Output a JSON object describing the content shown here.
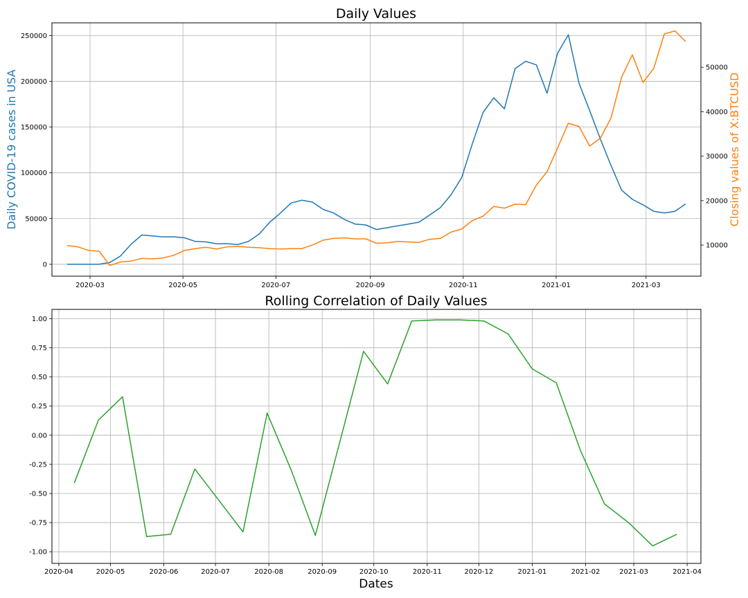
{
  "chart_data": [
    {
      "type": "line",
      "title": "Daily Values",
      "xlabel": "",
      "ylabel": "Daily COVID-19 cases in USA",
      "ylabel_right": "Closing values of X:BTCUSD",
      "grid": true,
      "legend": "none",
      "x_ticks": [
        "2020-03",
        "2020-05",
        "2020-07",
        "2020-09",
        "2020-11",
        "2021-01",
        "2021-03"
      ],
      "y_ticks_left": [
        "0",
        "50000",
        "100000",
        "150000",
        "200000",
        "250000"
      ],
      "y_ticks_right": [
        "10000",
        "20000",
        "30000",
        "40000",
        "50000"
      ],
      "ylim_left": [
        -13000,
        264000
      ],
      "ylim_right": [
        3000,
        60000
      ],
      "series": [
        {
          "axis": "left",
          "color": "#1f77b4",
          "x": [
            "2020-02-15",
            "2020-02-22",
            "2020-02-29",
            "2020-03-07",
            "2020-03-14",
            "2020-03-21",
            "2020-03-28",
            "2020-04-04",
            "2020-04-11",
            "2020-04-18",
            "2020-04-25",
            "2020-05-02",
            "2020-05-09",
            "2020-05-16",
            "2020-05-23",
            "2020-05-30",
            "2020-06-06",
            "2020-06-13",
            "2020-06-20",
            "2020-06-27",
            "2020-07-04",
            "2020-07-11",
            "2020-07-18",
            "2020-07-25",
            "2020-08-01",
            "2020-08-08",
            "2020-08-15",
            "2020-08-22",
            "2020-08-29",
            "2020-09-05",
            "2020-09-12",
            "2020-09-19",
            "2020-09-26",
            "2020-10-03",
            "2020-10-10",
            "2020-10-17",
            "2020-10-24",
            "2020-10-31",
            "2020-11-07",
            "2020-11-14",
            "2020-11-21",
            "2020-11-28",
            "2020-12-05",
            "2020-12-12",
            "2020-12-19",
            "2020-12-26",
            "2021-01-02",
            "2021-01-09",
            "2021-01-16",
            "2021-01-23",
            "2021-01-30",
            "2021-02-06",
            "2021-02-13",
            "2021-02-20",
            "2021-02-27",
            "2021-03-06",
            "2021-03-13",
            "2021-03-20",
            "2021-03-27"
          ],
          "values": [
            0,
            0,
            0,
            0,
            2000,
            9000,
            22000,
            32000,
            31000,
            30000,
            30000,
            29000,
            25000,
            24500,
            22500,
            22500,
            21500,
            25000,
            33000,
            46000,
            56000,
            67000,
            70000,
            68000,
            60000,
            56000,
            49000,
            44000,
            43000,
            38000,
            40000,
            42000,
            44000,
            46000,
            54000,
            62000,
            76000,
            95000,
            132000,
            166000,
            182000,
            170000,
            214000,
            222000,
            218000,
            187000,
            231000,
            251000,
            198000,
            168000,
            137000,
            108000,
            81000,
            71000,
            65000,
            58000,
            56000,
            58000,
            66000
          ]
        },
        {
          "axis": "right",
          "color": "#ff7f0e",
          "x": [
            "2020-02-15",
            "2020-02-22",
            "2020-02-29",
            "2020-03-07",
            "2020-03-14",
            "2020-03-21",
            "2020-03-28",
            "2020-04-04",
            "2020-04-11",
            "2020-04-18",
            "2020-04-25",
            "2020-05-02",
            "2020-05-09",
            "2020-05-16",
            "2020-05-23",
            "2020-05-30",
            "2020-06-06",
            "2020-06-13",
            "2020-06-20",
            "2020-06-27",
            "2020-07-04",
            "2020-07-11",
            "2020-07-18",
            "2020-07-25",
            "2020-08-01",
            "2020-08-08",
            "2020-08-15",
            "2020-08-22",
            "2020-08-29",
            "2020-09-05",
            "2020-09-12",
            "2020-09-19",
            "2020-09-26",
            "2020-10-03",
            "2020-10-10",
            "2020-10-17",
            "2020-10-24",
            "2020-10-31",
            "2020-11-07",
            "2020-11-14",
            "2020-11-21",
            "2020-11-28",
            "2020-12-05",
            "2020-12-12",
            "2020-12-19",
            "2020-12-26",
            "2021-01-02",
            "2021-01-09",
            "2021-01-16",
            "2021-01-23",
            "2021-01-30",
            "2021-02-06",
            "2021-02-13",
            "2021-02-20",
            "2021-02-27",
            "2021-03-06",
            "2021-03-13",
            "2021-03-20",
            "2021-03-27"
          ],
          "values": [
            9900,
            9600,
            8800,
            8600,
            5400,
            6200,
            6400,
            7000,
            6900,
            7100,
            7700,
            8800,
            9200,
            9500,
            9100,
            9600,
            9700,
            9500,
            9400,
            9200,
            9100,
            9200,
            9200,
            10000,
            11100,
            11500,
            11600,
            11400,
            11400,
            10400,
            10500,
            10800,
            10700,
            10600,
            11300,
            11500,
            12900,
            13600,
            15500,
            16500,
            18700,
            18300,
            19200,
            19100,
            23500,
            26500,
            31900,
            37400,
            36700,
            32300,
            34000,
            38600,
            47800,
            52800,
            46600,
            49700,
            57500,
            58200,
            55800
          ]
        }
      ]
    },
    {
      "type": "line",
      "title": "Rolling Correlation of Daily Values",
      "xlabel": "Dates",
      "ylabel": "",
      "grid": true,
      "legend": "none",
      "x_ticks": [
        "2020-04",
        "2020-05",
        "2020-06",
        "2020-07",
        "2020-08",
        "2020-09",
        "2020-10",
        "2020-11",
        "2020-12",
        "2021-01",
        "2021-02",
        "2021-03",
        "2021-04"
      ],
      "y_ticks": [
        "-1.00",
        "-0.75",
        "-0.50",
        "-0.25",
        "0.00",
        "0.25",
        "0.50",
        "0.75",
        "1.00"
      ],
      "ylim": [
        -1.1,
        1.08
      ],
      "series": [
        {
          "color": "#2ca02c",
          "x": [
            "2020-04-10",
            "2020-04-24",
            "2020-05-08",
            "2020-05-22",
            "2020-06-05",
            "2020-06-19",
            "2020-07-03",
            "2020-07-17",
            "2020-07-31",
            "2020-08-14",
            "2020-08-28",
            "2020-09-11",
            "2020-09-25",
            "2020-10-09",
            "2020-10-23",
            "2020-11-06",
            "2020-11-20",
            "2020-12-04",
            "2020-12-18",
            "2021-01-01",
            "2021-01-15",
            "2021-01-29",
            "2021-02-12",
            "2021-02-26",
            "2021-03-12",
            "2021-03-26"
          ],
          "values": [
            -0.41,
            0.13,
            0.33,
            -0.87,
            -0.85,
            -0.29,
            -0.56,
            -0.83,
            0.19,
            -0.3,
            -0.86,
            -0.07,
            0.72,
            0.44,
            0.98,
            0.99,
            0.99,
            0.98,
            0.87,
            0.57,
            0.45,
            -0.13,
            -0.59,
            -0.75,
            -0.95,
            -0.85
          ]
        }
      ]
    }
  ]
}
